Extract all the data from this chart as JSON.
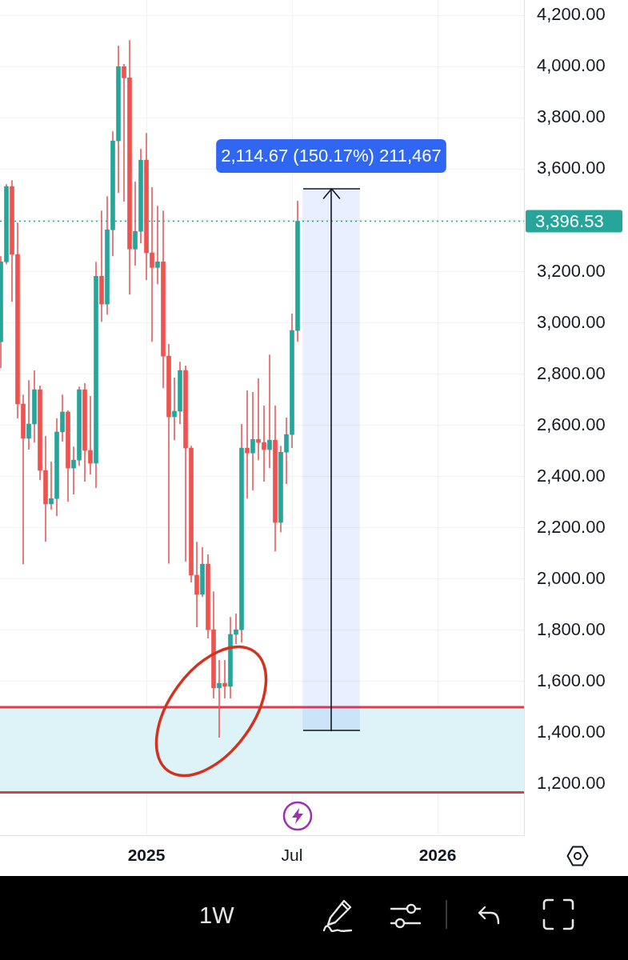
{
  "chart_data": {
    "type": "candlestick",
    "x": [
      "2024-07-08",
      "2024-07-15",
      "2024-07-22",
      "2024-07-29",
      "2024-08-05",
      "2024-08-12",
      "2024-08-19",
      "2024-08-26",
      "2024-09-02",
      "2024-09-09",
      "2024-09-16",
      "2024-09-23",
      "2024-09-30",
      "2024-10-07",
      "2024-10-14",
      "2024-10-21",
      "2024-10-28",
      "2024-11-04",
      "2024-11-11",
      "2024-11-18",
      "2024-11-25",
      "2024-12-02",
      "2024-12-09",
      "2024-12-16",
      "2024-12-23",
      "2024-12-30",
      "2025-01-06",
      "2025-01-13",
      "2025-01-20",
      "2025-01-27",
      "2025-02-03",
      "2025-02-10",
      "2025-02-17",
      "2025-02-24",
      "2025-03-03",
      "2025-03-10",
      "2025-03-17",
      "2025-03-24",
      "2025-03-31",
      "2025-04-07",
      "2025-04-14",
      "2025-04-21",
      "2025-04-28",
      "2025-05-05",
      "2025-05-12",
      "2025-05-19",
      "2025-05-26",
      "2025-06-02",
      "2025-06-09",
      "2025-06-16",
      "2025-06-23",
      "2025-06-30",
      "2025-07-07",
      "2025-07-14"
    ],
    "ohlc": [
      [
        2926,
        3260,
        2823,
        3238
      ],
      [
        3238,
        3541,
        3229,
        3532
      ],
      [
        3532,
        3557,
        3082,
        3267
      ],
      [
        3267,
        3391,
        2627,
        2683
      ],
      [
        2683,
        2720,
        2058,
        2549
      ],
      [
        2549,
        2776,
        2505,
        2605
      ],
      [
        2605,
        2814,
        2533,
        2739
      ],
      [
        2739,
        2755,
        2386,
        2424
      ],
      [
        2424,
        2558,
        2146,
        2293
      ],
      [
        2293,
        2458,
        2271,
        2314
      ],
      [
        2314,
        2627,
        2246,
        2574
      ],
      [
        2574,
        2720,
        2536,
        2652
      ],
      [
        2652,
        2658,
        2302,
        2433
      ],
      [
        2433,
        2517,
        2330,
        2464
      ],
      [
        2464,
        2751,
        2442,
        2739
      ],
      [
        2739,
        2764,
        2380,
        2502
      ],
      [
        2502,
        2714,
        2408,
        2452
      ],
      [
        2452,
        3238,
        2355,
        3182
      ],
      [
        3182,
        3438,
        3004,
        3073
      ],
      [
        3073,
        3494,
        3032,
        3363
      ],
      [
        3363,
        3747,
        3260,
        3710
      ],
      [
        3710,
        4081,
        3507,
        4000
      ],
      [
        4000,
        4010,
        3473,
        3956
      ],
      [
        3956,
        4103,
        3110,
        3288
      ],
      [
        3288,
        3551,
        3223,
        3357
      ],
      [
        3357,
        3679,
        3310,
        3635
      ],
      [
        3635,
        3741,
        3167,
        3273
      ],
      [
        3273,
        3529,
        2926,
        3216
      ],
      [
        3216,
        3457,
        3151,
        3238
      ],
      [
        3238,
        3438,
        2745,
        2870
      ],
      [
        2870,
        2917,
        2060,
        2633
      ],
      [
        2633,
        2786,
        2542,
        2655
      ],
      [
        2655,
        2848,
        2605,
        2814
      ],
      [
        2814,
        2833,
        2068,
        2511
      ],
      [
        2511,
        2520,
        1987,
        2015
      ],
      [
        2015,
        2145,
        1812,
        1940
      ],
      [
        1940,
        2124,
        1930,
        2058
      ],
      [
        2058,
        2096,
        1768,
        1802
      ],
      [
        1802,
        1952,
        1534,
        1575
      ],
      [
        1575,
        1684,
        1381,
        1593
      ],
      [
        1593,
        1684,
        1534,
        1581
      ],
      [
        1581,
        1852,
        1534,
        1784
      ],
      [
        1784,
        1865,
        1746,
        1802
      ],
      [
        1802,
        2605,
        1752,
        2511
      ],
      [
        2511,
        2736,
        2314,
        2492
      ],
      [
        2492,
        2730,
        2346,
        2545
      ],
      [
        2545,
        2783,
        2464,
        2533
      ],
      [
        2533,
        2677,
        2380,
        2505
      ],
      [
        2505,
        2876,
        2433,
        2542
      ],
      [
        2542,
        2677,
        2108,
        2221
      ],
      [
        2221,
        2520,
        2183,
        2495
      ],
      [
        2495,
        2630,
        2371,
        2564
      ],
      [
        2564,
        3036,
        2511,
        2970
      ],
      [
        2970,
        3476,
        2926,
        3396.53
      ]
    ],
    "colors": [
      "#26a69a",
      "#26a69a",
      "#ef5350",
      "#ef5350",
      "#ef5350",
      "#26a69a",
      "#26a69a",
      "#ef5350",
      "#ef5350",
      "#26a69a",
      "#26a69a",
      "#26a69a",
      "#ef5350",
      "#26a69a",
      "#26a69a",
      "#ef5350",
      "#ef5350",
      "#26a69a",
      "#ef5350",
      "#26a69a",
      "#26a69a",
      "#26a69a",
      "#ef5350",
      "#ef5350",
      "#26a69a",
      "#26a69a",
      "#ef5350",
      "#ef5350",
      "#26a69a",
      "#ef5350",
      "#ef5350",
      "#26a69a",
      "#26a69a",
      "#ef5350",
      "#ef5350",
      "#ef5350",
      "#26a69a",
      "#ef5350",
      "#ef5350",
      "#26a69a",
      "#ef5350",
      "#26a69a",
      "#26a69a",
      "#26a69a",
      "#ef5350",
      "#26a69a",
      "#ef5350",
      "#ef5350",
      "#26a69a",
      "#ef5350",
      "#26a69a",
      "#26a69a",
      "#26a69a",
      "#26a69a"
    ],
    "color": "#e35d5b",
    "series": [
      {
        "type": "bar",
        "x": [
          "2025-08-25"
        ],
        "values": [
          2114.67
        ],
        "base": [
          1408
        ],
        "color": "#2962ff"
      },
      {
        "type": "line",
        "x": [
          "2025-08-25",
          "2025-08-25"
        ],
        "values": [
          1408,
          3523
        ],
        "color": "#131722"
      }
    ],
    "xlim": [
      "2024-07-07",
      "2026-04-23"
    ],
    "xticks": [
      {
        "value": "2025-01-06",
        "label": "2025"
      },
      {
        "value": "2025-07-07",
        "label": "Jul"
      },
      {
        "value": "2026-01-05",
        "label": "2026"
      }
    ],
    "ylim": [
      1000,
      4260
    ],
    "yticks": [
      {
        "value": 1200,
        "label": "1,200.00"
      },
      {
        "value": 1400,
        "label": "1,400.00"
      },
      {
        "value": 1600,
        "label": "1,600.00"
      },
      {
        "value": 1800,
        "label": "1,800.00"
      },
      {
        "value": 2000,
        "label": "2,000.00"
      },
      {
        "value": 2200,
        "label": "2,200.00"
      },
      {
        "value": 2400,
        "label": "2,400.00"
      },
      {
        "value": 2600,
        "label": "2,600.00"
      },
      {
        "value": 2800,
        "label": "2,800.00"
      },
      {
        "value": 3000,
        "label": "3,000.00"
      },
      {
        "value": 3200,
        "label": "3,200.00"
      },
      {
        "value": 3400,
        "label": null
      },
      {
        "value": 3600,
        "label": "3,600.00"
      },
      {
        "value": 3800,
        "label": "3,800.00"
      },
      {
        "value": 4000,
        "label": "4,000.00"
      },
      {
        "value": 4200,
        "label": "4,200.00"
      }
    ],
    "bands": [
      {
        "axis": "y",
        "from": 1167,
        "to": 1500,
        "color": "#def3f8"
      }
    ],
    "ref_lines": [
      {
        "axis": "y",
        "value": 1500,
        "color": "#e03b4b"
      },
      {
        "axis": "y",
        "value": 1167,
        "color": "#e03b4b"
      },
      {
        "axis": "y",
        "value": 3396.53,
        "label": "3,396.53",
        "color": "#26a69a",
        "line_style": "dotted"
      }
    ],
    "annotations": [
      {
        "text": "2,114.67 (150.17%) 211,467",
        "x": "2025-08-25",
        "y": 3523
      },
      "1W"
    ],
    "grid": true
  }
}
